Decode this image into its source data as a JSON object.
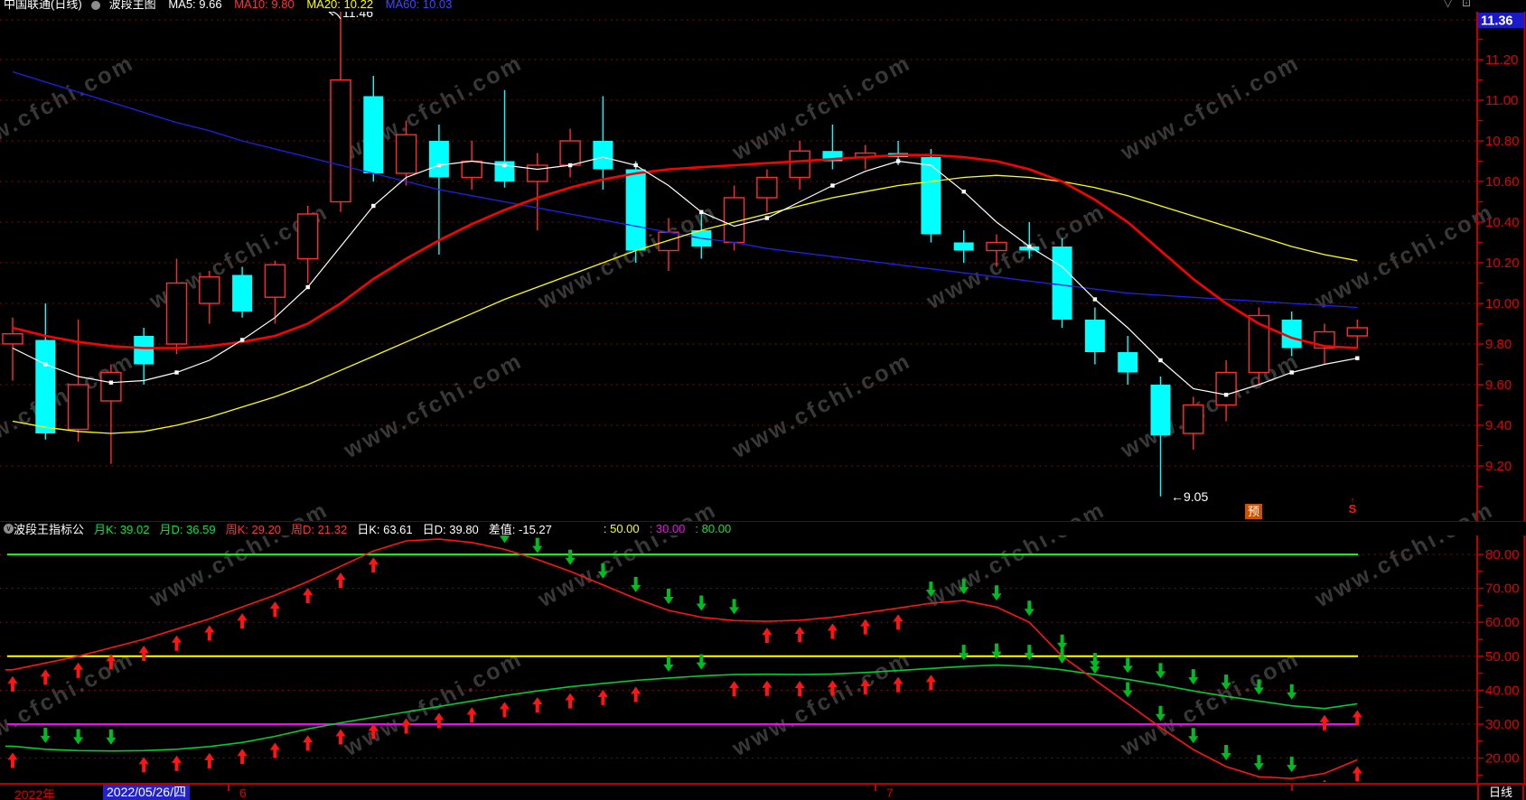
{
  "top_legend": {
    "title": "中国联通(日线)",
    "chart_label": "波段主图",
    "ma_items": [
      {
        "label": "MA5: 9.66",
        "color": "#ffffff"
      },
      {
        "label": "MA10: 9.80",
        "color": "#ff3434"
      },
      {
        "label": "MA20: 10.22",
        "color": "#ffff00"
      },
      {
        "label": "MA60: 10.03",
        "color": "#4444ff"
      }
    ]
  },
  "price_axis": {
    "current": "11.36",
    "labels": [
      "11.20",
      "11.00",
      "10.80",
      "10.60",
      "10.40",
      "10.20",
      "10.00",
      "9.80",
      "9.60",
      "9.40",
      "9.20"
    ]
  },
  "indicator_header": {
    "name": "波段王指标公",
    "month_k": "月K: 39.02",
    "month_d": "月D: 36.59",
    "week_k": "周K: 29.20",
    "week_d": "周D: 21.32",
    "day_k": "日K: 63.61",
    "day_d": "日D: 39.80",
    "diff": "差值: -15.27",
    "p50": ": 50.00",
    "p30": ": 30.00",
    "p80": ": 80.00"
  },
  "indicator_axis": {
    "labels": [
      "80.00",
      "70.00",
      "60.00",
      "50.00",
      "40.00",
      "30.00",
      "20.00"
    ]
  },
  "annotations": {
    "high": "11.46",
    "low_arrow": "←",
    "low": "9.05",
    "warn_badge": "预",
    "signal_arrow": "↑",
    "signal": "S"
  },
  "bottom_bar": {
    "year": "2022年",
    "selected_date": "2022/05/26/四",
    "months": [
      "6",
      "7"
    ],
    "period": "日线"
  },
  "watermark": {
    "text": "www.cfchi.com"
  },
  "colors": {
    "up": "#ff2d2d",
    "down": "#00ffff",
    "grid": "#ad0000",
    "axis_text": "#e00000",
    "border": "#c00000",
    "ref80": "#00ff00",
    "ref50": "#ffff00",
    "ref30": "#ff00ff",
    "ind_red": "#ff1414",
    "ind_green": "#00cc33",
    "arrow_up": "#ff1414",
    "arrow_down": "#00bb22",
    "ma_white": "#ffffff",
    "ma_red": "#ff0000",
    "ma_yellow": "#ffff00",
    "ma_blue": "#2020e6",
    "current_box": "#1a1acc"
  },
  "chart_data": {
    "type": "candlestick+oscillator",
    "price_panel": {
      "ylim": [
        9.0,
        11.36
      ],
      "grid_prices": [
        11.2,
        11.0,
        10.8,
        10.6,
        10.4,
        10.2,
        10.0,
        9.8,
        9.6,
        9.4,
        9.2
      ],
      "current_price": 11.36,
      "annotated_high": 11.46,
      "annotated_low": 9.05,
      "candles": [
        [
          9.8,
          9.93,
          9.62,
          9.85
        ],
        [
          9.82,
          10.0,
          9.33,
          9.36
        ],
        [
          9.38,
          9.92,
          9.32,
          9.6
        ],
        [
          9.52,
          9.7,
          9.21,
          9.66
        ],
        [
          9.84,
          9.88,
          9.6,
          9.7
        ],
        [
          9.8,
          10.22,
          9.75,
          10.1
        ],
        [
          10.0,
          10.16,
          9.9,
          10.13
        ],
        [
          10.14,
          10.18,
          9.93,
          9.96
        ],
        [
          10.03,
          10.21,
          9.9,
          10.19
        ],
        [
          10.22,
          10.48,
          10.1,
          10.44
        ],
        [
          10.5,
          11.46,
          10.45,
          11.1
        ],
        [
          11.02,
          11.12,
          10.6,
          10.64
        ],
        [
          10.64,
          10.9,
          10.58,
          10.83
        ],
        [
          10.8,
          10.88,
          10.24,
          10.62
        ],
        [
          10.62,
          10.8,
          10.56,
          10.7
        ],
        [
          10.7,
          11.05,
          10.57,
          10.6
        ],
        [
          10.6,
          10.74,
          10.36,
          10.68
        ],
        [
          10.68,
          10.86,
          10.62,
          10.8
        ],
        [
          10.8,
          11.02,
          10.56,
          10.66
        ],
        [
          10.66,
          10.7,
          10.2,
          10.26
        ],
        [
          10.26,
          10.42,
          10.16,
          10.35
        ],
        [
          10.36,
          10.44,
          10.22,
          10.28
        ],
        [
          10.3,
          10.58,
          10.26,
          10.52
        ],
        [
          10.52,
          10.66,
          10.45,
          10.62
        ],
        [
          10.62,
          10.8,
          10.56,
          10.75
        ],
        [
          10.75,
          10.88,
          10.66,
          10.7
        ],
        [
          10.72,
          10.78,
          10.66,
          10.74
        ],
        [
          10.74,
          10.8,
          10.68,
          10.72
        ],
        [
          10.72,
          10.76,
          10.3,
          10.34
        ],
        [
          10.3,
          10.36,
          10.2,
          10.26
        ],
        [
          10.26,
          10.34,
          10.18,
          10.3
        ],
        [
          10.28,
          10.4,
          10.22,
          10.26
        ],
        [
          10.28,
          10.32,
          9.88,
          9.92
        ],
        [
          9.92,
          9.98,
          9.7,
          9.76
        ],
        [
          9.76,
          9.84,
          9.6,
          9.66
        ],
        [
          9.6,
          9.64,
          9.05,
          9.35
        ],
        [
          9.36,
          9.54,
          9.28,
          9.5
        ],
        [
          9.5,
          9.72,
          9.42,
          9.66
        ],
        [
          9.66,
          9.98,
          9.6,
          9.94
        ],
        [
          9.92,
          9.96,
          9.74,
          9.78
        ],
        [
          9.78,
          9.9,
          9.7,
          9.86
        ],
        [
          9.84,
          9.92,
          9.78,
          9.88
        ]
      ],
      "ma_white": [
        9.78,
        9.7,
        9.64,
        9.61,
        9.62,
        9.66,
        9.72,
        9.82,
        9.93,
        10.08,
        10.28,
        10.48,
        10.62,
        10.68,
        10.7,
        10.68,
        10.66,
        10.68,
        10.72,
        10.68,
        10.58,
        10.45,
        10.38,
        10.42,
        10.5,
        10.58,
        10.65,
        10.7,
        10.68,
        10.55,
        10.4,
        10.28,
        10.18,
        10.02,
        9.88,
        9.72,
        9.58,
        9.55,
        9.6,
        9.66,
        9.7,
        9.73
      ],
      "ma_red": [
        9.88,
        9.84,
        9.81,
        9.79,
        9.78,
        9.78,
        9.79,
        9.81,
        9.84,
        9.9,
        10.0,
        10.12,
        10.22,
        10.31,
        10.39,
        10.46,
        10.52,
        10.57,
        10.61,
        10.64,
        10.66,
        10.67,
        10.68,
        10.69,
        10.7,
        10.71,
        10.72,
        10.73,
        10.73,
        10.72,
        10.7,
        10.66,
        10.6,
        10.51,
        10.4,
        10.26,
        10.12,
        10.0,
        9.9,
        9.83,
        9.79,
        9.78
      ],
      "ma_yellow": [
        9.42,
        9.39,
        9.37,
        9.36,
        9.37,
        9.4,
        9.44,
        9.49,
        9.54,
        9.6,
        9.67,
        9.74,
        9.81,
        9.88,
        9.95,
        10.02,
        10.08,
        10.14,
        10.2,
        10.26,
        10.31,
        10.36,
        10.4,
        10.44,
        10.48,
        10.52,
        10.55,
        10.58,
        10.6,
        10.62,
        10.63,
        10.62,
        10.6,
        10.57,
        10.53,
        10.48,
        10.43,
        10.38,
        10.33,
        10.28,
        10.24,
        10.21
      ],
      "ma_blue": [
        11.14,
        11.09,
        11.04,
        10.99,
        10.94,
        10.89,
        10.85,
        10.8,
        10.76,
        10.72,
        10.68,
        10.64,
        10.6,
        10.56,
        10.53,
        10.5,
        10.47,
        10.44,
        10.41,
        10.38,
        10.35,
        10.32,
        10.3,
        10.27,
        10.25,
        10.23,
        10.21,
        10.19,
        10.17,
        10.15,
        10.13,
        10.11,
        10.09,
        10.07,
        10.05,
        10.04,
        10.03,
        10.02,
        10.01,
        10.0,
        9.99,
        9.98
      ]
    },
    "indicator_panel": {
      "ylim": [
        10,
        88
      ],
      "grid_values": [
        80,
        70,
        60,
        50,
        40,
        30,
        20
      ],
      "ref_lines": [
        {
          "value": 80,
          "color": "#00ff00"
        },
        {
          "value": 50,
          "color": "#ffff00"
        },
        {
          "value": 30,
          "color": "#ff00ff"
        }
      ],
      "line_red": [
        46,
        48,
        50,
        52.5,
        55,
        58,
        61,
        64.5,
        68,
        72,
        76.5,
        81,
        84,
        84.5,
        83.5,
        81.5,
        78.5,
        75,
        71,
        67,
        63.5,
        61.5,
        60.5,
        60.3,
        60.6,
        61.5,
        62.8,
        64.2,
        65.6,
        66.4,
        64.5,
        60,
        50,
        43,
        36,
        29,
        22.5,
        17.5,
        14.5,
        14,
        15.5,
        19.5
      ],
      "line_green": [
        23.5,
        22.6,
        22.2,
        22.1,
        22.2,
        22.6,
        23.4,
        24.6,
        26.4,
        28.6,
        30.4,
        32.0,
        33.6,
        35.2,
        36.8,
        38.4,
        39.8,
        41.0,
        42.0,
        42.9,
        43.6,
        44.2,
        44.6,
        44.7,
        44.6,
        44.8,
        45.2,
        45.8,
        46.4,
        47.0,
        47.4,
        47.0,
        46.0,
        44.6,
        43.2,
        41.6,
        39.8,
        38.2,
        36.8,
        35.4,
        34.6,
        36.0
      ],
      "arrows_red_line": [
        "u",
        "u",
        "u",
        "u",
        "u",
        "u",
        "u",
        "u",
        "u",
        "u",
        "u",
        "u",
        "d",
        "d",
        "d",
        "d",
        "d",
        "d",
        "d",
        "d",
        "d",
        "d",
        "d",
        "u",
        "u",
        "u",
        "u",
        "u",
        "d",
        "d",
        "d",
        "d",
        "d",
        "d",
        "d",
        "d",
        "d",
        "d",
        "d",
        "d",
        "u",
        "u"
      ],
      "arrows_green_line": [
        "u",
        "d",
        "d",
        "d",
        "u",
        "u",
        "u",
        "u",
        "u",
        "u",
        "u",
        "u",
        "u",
        "u",
        "u",
        "u",
        "u",
        "u",
        "u",
        "u",
        "d",
        "d",
        "u",
        "u",
        "u",
        "u",
        "u",
        "u",
        "u",
        "d",
        "d",
        "d",
        "d",
        "d",
        "d",
        "d",
        "d",
        "d",
        "d",
        "d",
        "u",
        "u"
      ]
    }
  }
}
